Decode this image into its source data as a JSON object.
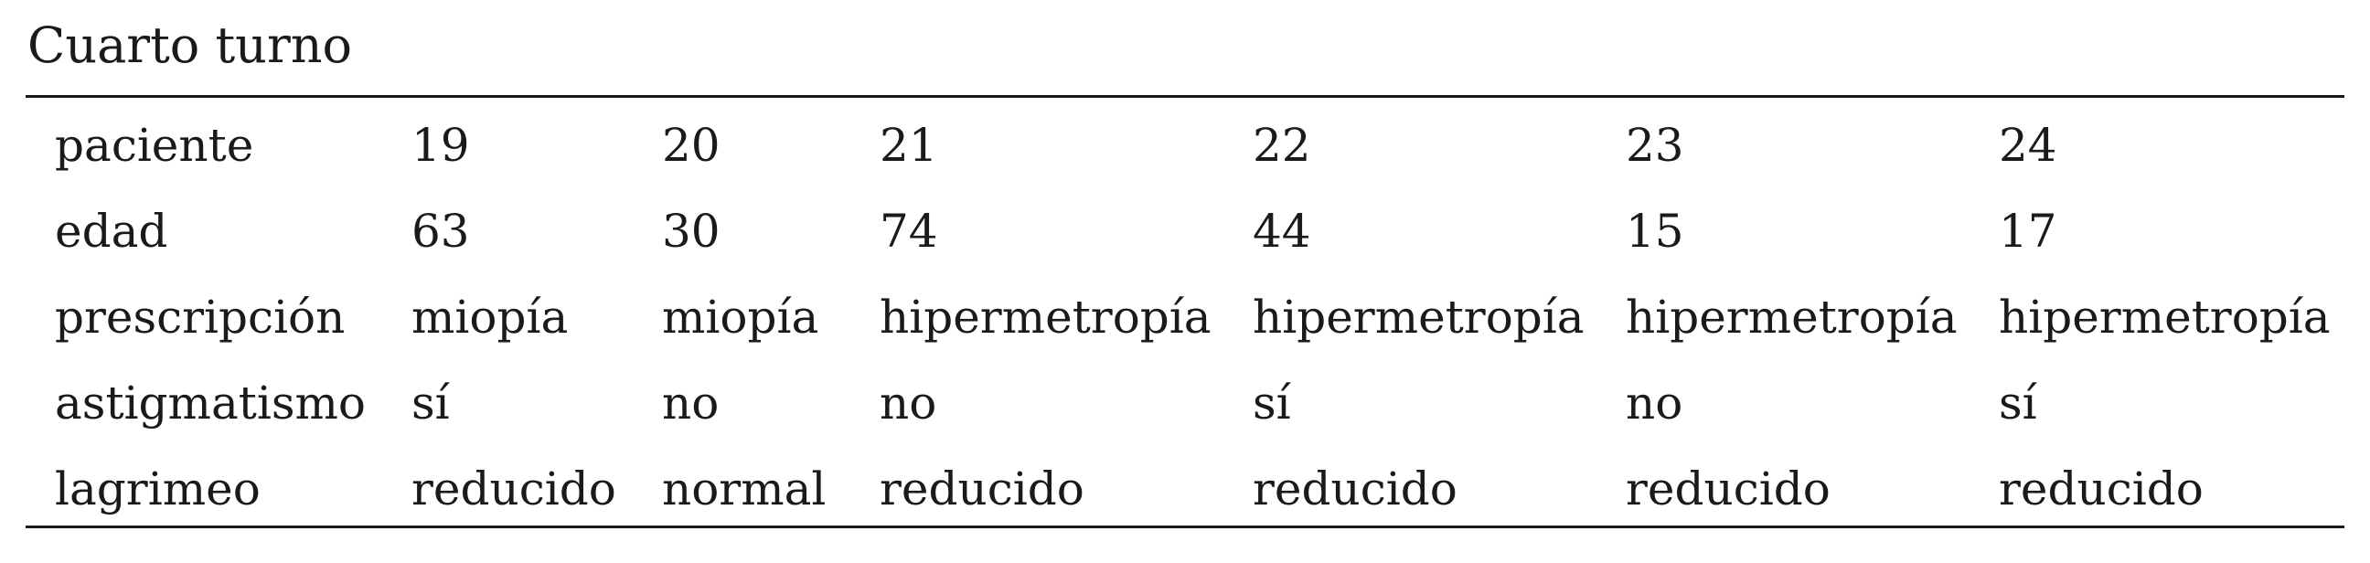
{
  "caption": "Cuarto turno",
  "table": {
    "rows": [
      {
        "label": "paciente",
        "values": [
          "19",
          "20",
          "21",
          "22",
          "23",
          "24"
        ]
      },
      {
        "label": "edad",
        "values": [
          "63",
          "30",
          "74",
          "44",
          "15",
          "17"
        ]
      },
      {
        "label": "prescripción",
        "values": [
          "miopía",
          "miopía",
          "hipermetropía",
          "hipermetropía",
          "hipermetropía",
          "hipermetropía"
        ]
      },
      {
        "label": "astigmatismo",
        "values": [
          "sí",
          "no",
          "no",
          "sí",
          "no",
          "sí"
        ]
      },
      {
        "label": "lagrimeo",
        "values": [
          "reducido",
          "normal",
          "reducido",
          "reducido",
          "reducido",
          "reducido"
        ]
      }
    ]
  }
}
